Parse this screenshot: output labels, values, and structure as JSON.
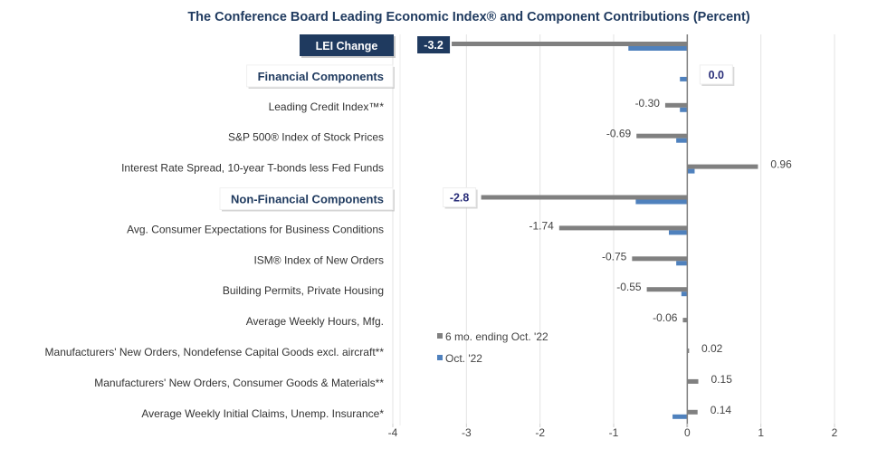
{
  "chart_data": {
    "type": "bar",
    "orientation": "horizontal",
    "title": "The Conference Board Leading Economic Index® and Component Contributions (Percent)",
    "xlabel": "",
    "ylabel": "",
    "xlim": [
      -4,
      2
    ],
    "xticks": [
      -4,
      -3,
      -2,
      -1,
      0,
      1,
      2
    ],
    "grid": true,
    "legend_position": "lower-left-inside",
    "categories": [
      {
        "label": "LEI Change",
        "kind": "header-dark",
        "six_month": -3.2,
        "oct": -0.8,
        "value_label": "-3.2",
        "label_style": "box-dark"
      },
      {
        "label": "Financial Components",
        "kind": "header",
        "six_month": 0.0,
        "oct": -0.1,
        "value_label": "0.0",
        "label_style": "box-light"
      },
      {
        "label": "Leading Credit Index™*",
        "kind": "item",
        "six_month": -0.3,
        "oct": -0.1,
        "value_label": "-0.30"
      },
      {
        "label": "S&P 500® Index of Stock Prices",
        "kind": "item",
        "six_month": -0.69,
        "oct": -0.15,
        "value_label": "-0.69"
      },
      {
        "label": "Interest Rate Spread, 10-year T-bonds less Fed Funds",
        "kind": "item",
        "six_month": 0.96,
        "oct": 0.1,
        "value_label": "0.96"
      },
      {
        "label": "Non-Financial Components",
        "kind": "header",
        "six_month": -2.8,
        "oct": -0.7,
        "value_label": "-2.8",
        "label_style": "box-light"
      },
      {
        "label": "Avg. Consumer Expectations for Business Conditions",
        "kind": "item",
        "six_month": -1.74,
        "oct": -0.25,
        "value_label": "-1.74"
      },
      {
        "label": "ISM® Index of New Orders",
        "kind": "item",
        "six_month": -0.75,
        "oct": -0.15,
        "value_label": "-0.75"
      },
      {
        "label": "Building Permits, Private Housing",
        "kind": "item",
        "six_month": -0.55,
        "oct": -0.08,
        "value_label": "-0.55"
      },
      {
        "label": "Average Weekly Hours, Mfg.",
        "kind": "item",
        "six_month": -0.06,
        "oct": 0.0,
        "value_label": "-0.06"
      },
      {
        "label": "Manufacturers' New Orders, Nondefense Capital Goods excl. aircraft**",
        "kind": "item",
        "six_month": 0.02,
        "oct": 0.0,
        "value_label": "0.02"
      },
      {
        "label": "Manufacturers' New Orders, Consumer Goods & Materials**",
        "kind": "item",
        "six_month": 0.15,
        "oct": 0.0,
        "value_label": "0.15"
      },
      {
        "label": "Average Weekly Initial Claims, Unemp. Insurance*",
        "kind": "item",
        "six_month": 0.14,
        "oct": -0.2,
        "value_label": "0.14"
      }
    ],
    "series": [
      {
        "name": "6 mo. ending Oct. '22",
        "key": "six_month",
        "color": "#808080"
      },
      {
        "name": "Oct. '22",
        "key": "oct",
        "color": "#4f81bd"
      }
    ]
  },
  "colors": {
    "title": "#1f3a5f",
    "header_box_dark": "#1f3a5f",
    "grid": "#e3e3e3",
    "axis": "#808080"
  }
}
